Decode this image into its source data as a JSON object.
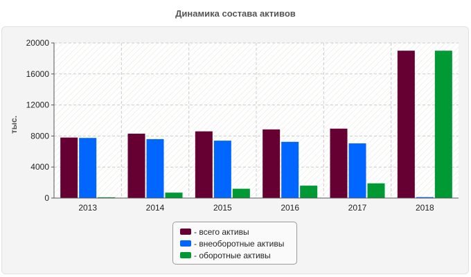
{
  "chart_data": {
    "type": "bar",
    "title": "Динамика состава активов",
    "ylabel": "тыс.",
    "xlabel": "",
    "categories": [
      "2013",
      "2014",
      "2015",
      "2016",
      "2017",
      "2018"
    ],
    "series": [
      {
        "name": "- всего активы",
        "color": "#660033",
        "values": [
          7800,
          8300,
          8600,
          8850,
          8950,
          19000
        ]
      },
      {
        "name": "- внеоборотные активы",
        "color": "#0066ff",
        "values": [
          7750,
          7600,
          7400,
          7250,
          7050,
          120
        ]
      },
      {
        "name": "- оборотные активы",
        "color": "#009933",
        "values": [
          100,
          700,
          1200,
          1600,
          1900,
          19000
        ]
      }
    ],
    "ylim": [
      0,
      20000
    ],
    "yticks": [
      0,
      4000,
      8000,
      12000,
      16000,
      20000
    ],
    "grid": true,
    "legend_position": "bottom-center"
  }
}
